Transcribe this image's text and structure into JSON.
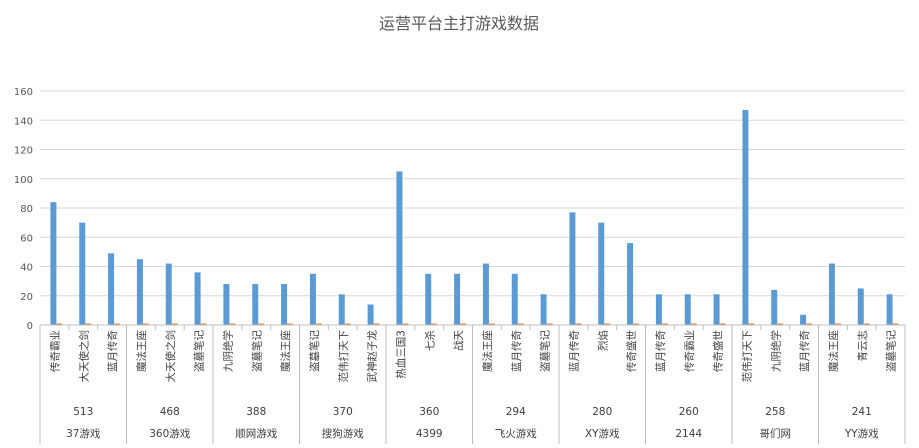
{
  "chart_data": {
    "type": "bar",
    "title": "运营平台主打游戏数据",
    "ylim": [
      0,
      160
    ],
    "yticks": [
      0,
      20,
      40,
      60,
      80,
      100,
      120,
      140,
      160
    ],
    "grid": true,
    "legend": "none",
    "colors": {
      "primary": "#5b9bd5",
      "secondary": "#ed7d31",
      "grid": "#d9d9d9",
      "axis": "#bfbfbf"
    },
    "groups": [
      {
        "platform": "37游戏",
        "total": "513",
        "games": [
          "传奇霸业",
          "大天使之剑",
          "蓝月传奇"
        ],
        "values": [
          84,
          70,
          49
        ],
        "secondary": [
          1,
          1,
          1
        ]
      },
      {
        "platform": "360游戏",
        "total": "468",
        "games": [
          "魔法王座",
          "大天使之剑",
          "盗墓笔记"
        ],
        "values": [
          45,
          42,
          36
        ],
        "secondary": [
          1,
          1,
          1
        ]
      },
      {
        "platform": "顺网游戏",
        "total": "388",
        "games": [
          "九阴绝学",
          "盗墓笔记",
          "魔法王座"
        ],
        "values": [
          28,
          28,
          28
        ],
        "secondary": [
          1,
          1,
          1
        ]
      },
      {
        "platform": "搜狗游戏",
        "total": "370",
        "games": [
          "盗墓笔记",
          "范伟打天下",
          "武神赵子龙"
        ],
        "values": [
          35,
          21,
          14
        ],
        "secondary": [
          1,
          1,
          1
        ]
      },
      {
        "platform": "4399",
        "total": "360",
        "games": [
          "热血三国3",
          "七杀",
          "战天"
        ],
        "values": [
          105,
          35,
          35
        ],
        "secondary": [
          1,
          1,
          1
        ]
      },
      {
        "platform": "飞火游戏",
        "total": "294",
        "games": [
          "魔法王座",
          "蓝月传奇",
          "盗墓笔记"
        ],
        "values": [
          42,
          35,
          21
        ],
        "secondary": [
          1,
          1,
          1
        ]
      },
      {
        "platform": "XY游戏",
        "total": "280",
        "games": [
          "蓝月传奇",
          "烈焰",
          "传奇盛世"
        ],
        "values": [
          77,
          70,
          56
        ],
        "secondary": [
          1,
          1,
          1
        ]
      },
      {
        "platform": "2144",
        "total": "260",
        "games": [
          "蓝月传奇",
          "传奇霸业",
          "传奇盛世"
        ],
        "values": [
          21,
          21,
          21
        ],
        "secondary": [
          1,
          1,
          1
        ]
      },
      {
        "platform": "哥们网",
        "total": "258",
        "games": [
          "范伟打天下",
          "九阴绝学",
          "蓝月传奇"
        ],
        "values": [
          147,
          24,
          7
        ],
        "secondary": [
          1,
          1,
          1
        ]
      },
      {
        "platform": "YY游戏",
        "total": "241",
        "games": [
          "魔法王座",
          "青云志",
          "盗墓笔记"
        ],
        "values": [
          42,
          25,
          21
        ],
        "secondary": [
          1,
          1,
          1
        ]
      }
    ]
  }
}
